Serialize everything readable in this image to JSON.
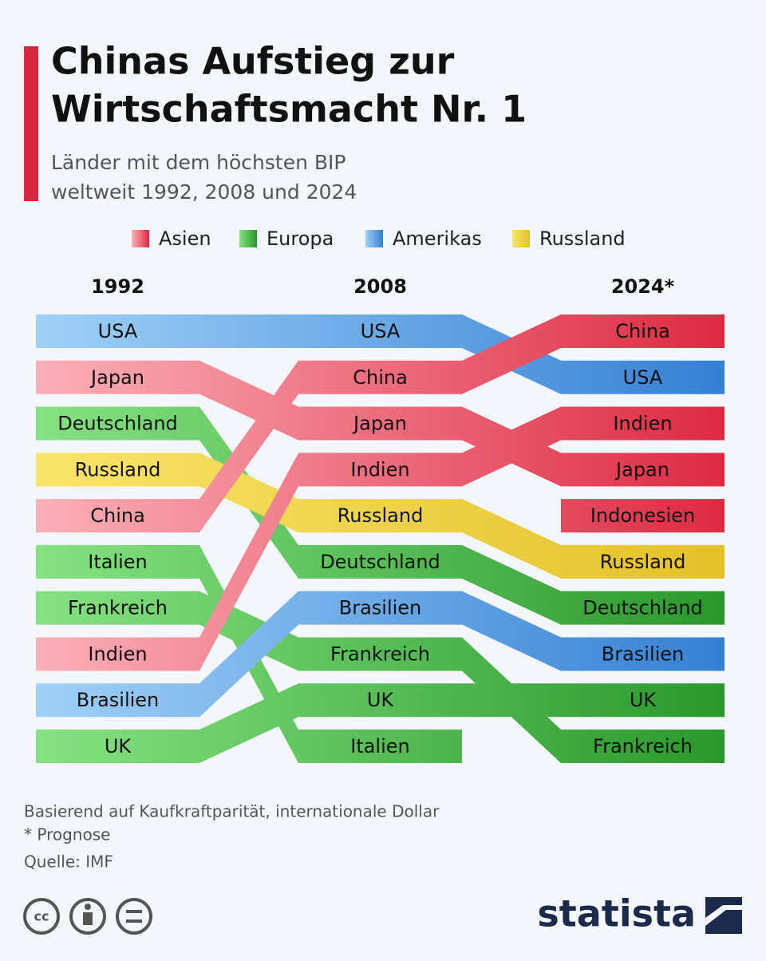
{
  "chart_data": {
    "type": "bump",
    "title": [
      "Chinas Aufstieg zur",
      "Wirtschaftsmacht Nr. 1"
    ],
    "subtitle": [
      "Länder mit dem höchsten BIP",
      "weltweit 1992, 2008 und 2024"
    ],
    "groups": [
      {
        "name": "Asien",
        "colors": [
          "#fbb0b9",
          "#dd2a42"
        ]
      },
      {
        "name": "Europa",
        "colors": [
          "#86e282",
          "#2a982c"
        ]
      },
      {
        "name": "Amerikas",
        "colors": [
          "#9fd0f7",
          "#3580d4"
        ]
      },
      {
        "name": "Russland",
        "colors": [
          "#f9e56a",
          "#e3c12a"
        ]
      }
    ],
    "x": [
      "1992",
      "2008",
      "2024*"
    ],
    "series": [
      {
        "name": "USA",
        "group": 2,
        "values": [
          1,
          1,
          2
        ]
      },
      {
        "name": "Japan",
        "group": 0,
        "values": [
          2,
          3,
          4
        ]
      },
      {
        "name": "Deutschland",
        "group": 1,
        "values": [
          3,
          6,
          7
        ]
      },
      {
        "name": "Russland",
        "group": 3,
        "values": [
          4,
          5,
          6
        ]
      },
      {
        "name": "China",
        "group": 0,
        "values": [
          5,
          2,
          1
        ]
      },
      {
        "name": "Italien",
        "group": 1,
        "values": [
          6,
          10,
          null
        ]
      },
      {
        "name": "Frankreich",
        "group": 1,
        "values": [
          7,
          8,
          10
        ]
      },
      {
        "name": "Indien",
        "group": 0,
        "values": [
          8,
          4,
          3
        ]
      },
      {
        "name": "Brasilien",
        "group": 2,
        "values": [
          9,
          7,
          8
        ]
      },
      {
        "name": "UK",
        "group": 1,
        "values": [
          10,
          9,
          9
        ]
      },
      {
        "name": "Indonesien",
        "group": 0,
        "values": [
          null,
          null,
          5
        ]
      }
    ],
    "ylim": [
      1,
      10
    ],
    "notes": [
      "Basierend auf Kaufkraftparität, internationale Dollar",
      "* Prognose",
      "Quelle: IMF"
    ],
    "brand": "statista"
  }
}
